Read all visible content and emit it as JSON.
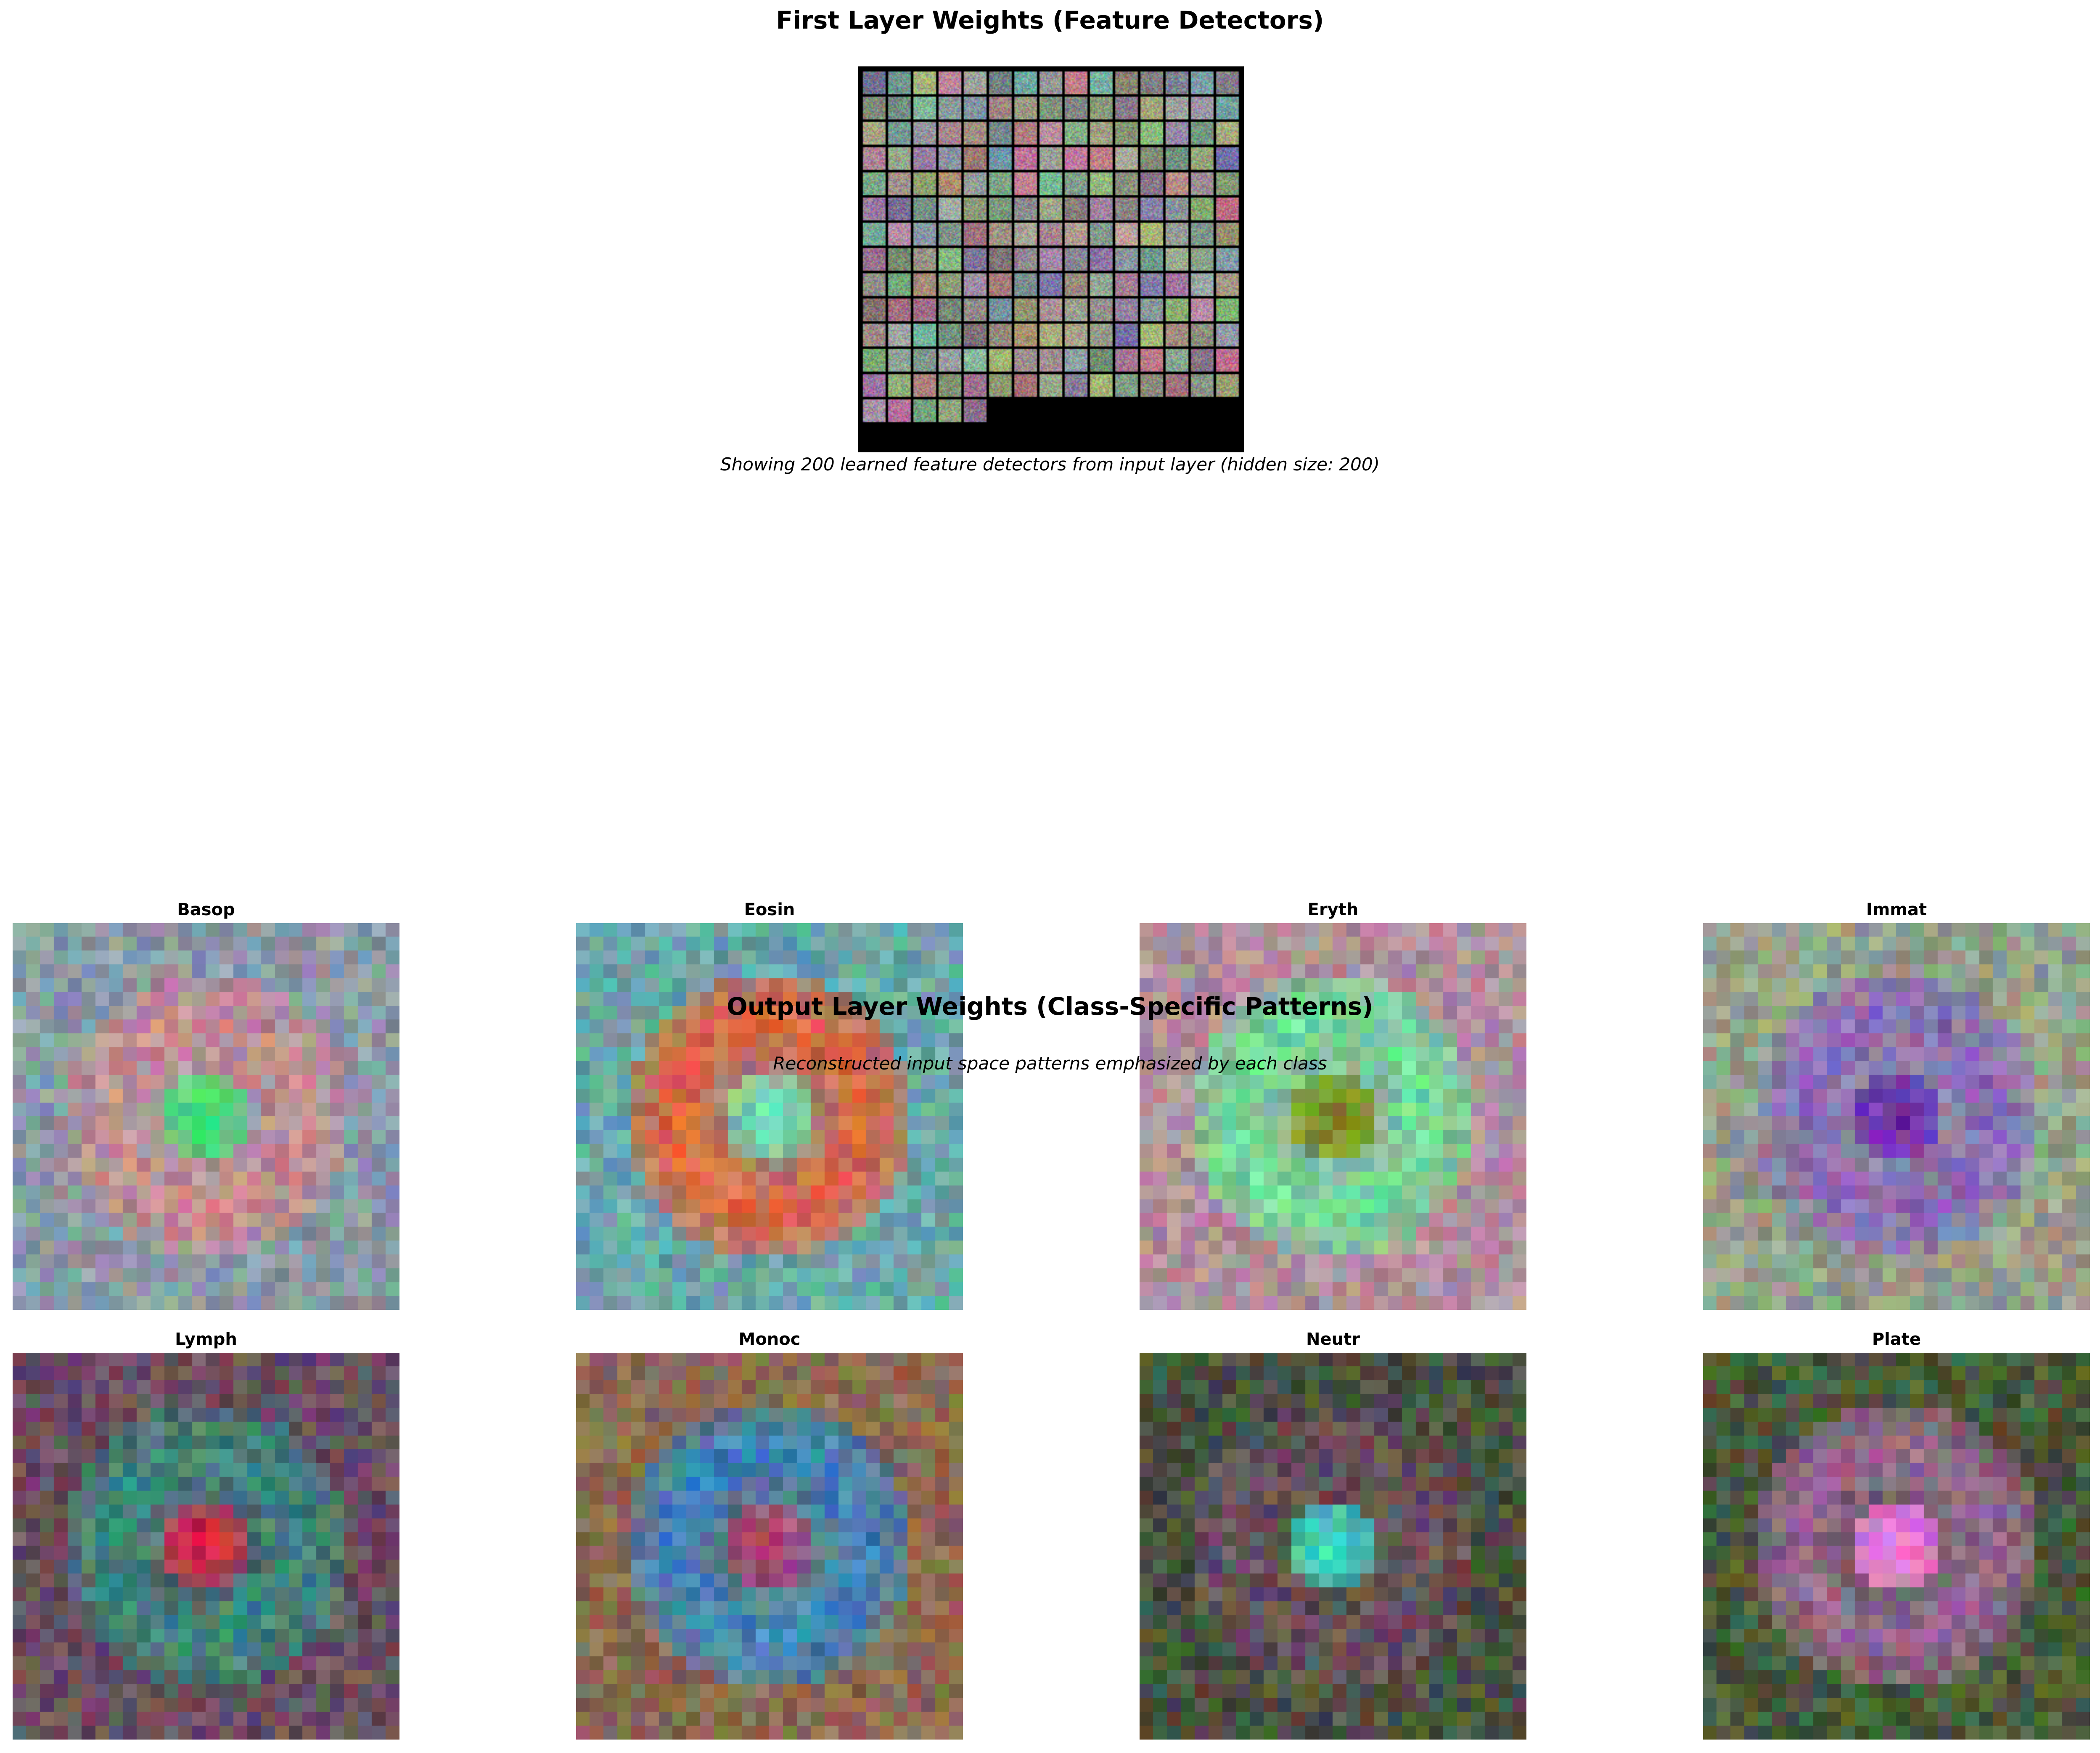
{
  "figure": {
    "top_title": "First Layer Weights (Feature Detectors)",
    "top_caption": "Showing 200 learned feature detectors from input layer (hidden size: 200)",
    "bottom_title": "Output Layer Weights (Class-Specific Patterns)",
    "bottom_caption": "Reconstructed input space patterns emphasized by each class"
  },
  "mosaic": {
    "feature_count": 200,
    "tile_description": "noisy multicolour weight tiles"
  },
  "classes": [
    {
      "label": "Basop",
      "center_color": "#2fe870",
      "ring_color": "#c98a92",
      "bg_color": "#8a9aa6"
    },
    {
      "label": "Eosin",
      "center_color": "#5ef0c8",
      "ring_color": "#e0633e",
      "bg_color": "#6aa6a8"
    },
    {
      "label": "Eryth",
      "center_color": "#8a7a10",
      "ring_color": "#6ee09a",
      "bg_color": "#b0909c"
    },
    {
      "label": "Immat",
      "center_color": "#6a2aa8",
      "ring_color": "#8a6ab8",
      "bg_color": "#96a08a"
    },
    {
      "label": "Lymph",
      "center_color": "#e0143c",
      "ring_color": "#3a8a80",
      "bg_color": "#6a5060"
    },
    {
      "label": "Monoc",
      "center_color": "#c83a5a",
      "ring_color": "#3a86c0",
      "bg_color": "#8a6a52"
    },
    {
      "label": "Neutr",
      "center_color": "#32ecc8",
      "ring_color": "#6a5060",
      "bg_color": "#4a5040"
    },
    {
      "label": "Plate",
      "center_color": "#f07ae0",
      "ring_color": "#9a6a98",
      "bg_color": "#4a5a3a"
    }
  ]
}
